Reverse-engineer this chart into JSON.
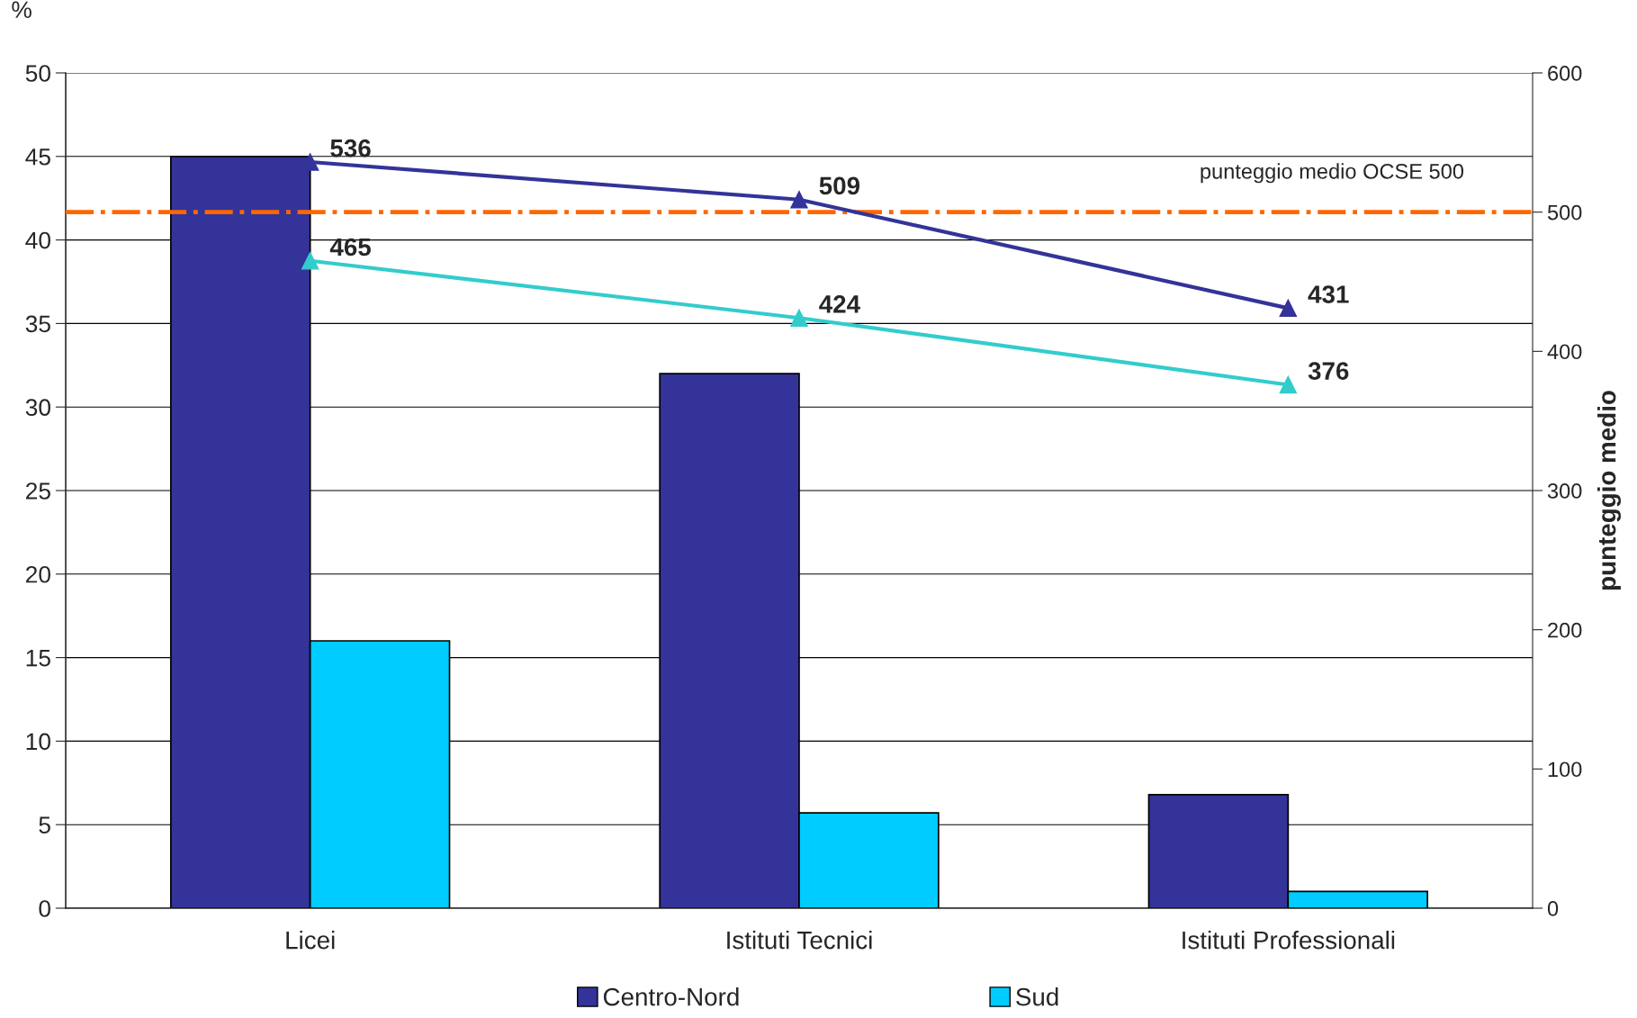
{
  "chart_data": {
    "type": "bar",
    "categories": [
      "Licei",
      "Istituti Tecnici",
      "Istituti Professionali"
    ],
    "series": [
      {
        "name": "Centro-Nord",
        "color": "#333399",
        "values": [
          45,
          32,
          6.8
        ]
      },
      {
        "name": "Sud",
        "color": "#00ccff",
        "values": [
          16,
          5.7,
          1.0
        ]
      },
      {
        "type": "line",
        "axis": "y2",
        "color": "#333399",
        "values": [
          536,
          509,
          431
        ],
        "marker": "triangle",
        "data_labels": true
      },
      {
        "type": "line",
        "axis": "y2",
        "color": "#33cccc",
        "values": [
          465,
          424,
          376
        ],
        "marker": "triangle",
        "data_labels": true
      }
    ],
    "ylabel": "%",
    "y2label": "punteggio medio",
    "ylim": [
      0,
      50
    ],
    "yticks": [
      0,
      5,
      10,
      15,
      20,
      25,
      30,
      35,
      40,
      45,
      50
    ],
    "y2lim": [
      0,
      600
    ],
    "y2ticks": [
      0,
      100,
      200,
      300,
      400,
      500,
      600
    ],
    "ref_lines": [
      {
        "axis": "y2",
        "value": 500,
        "label": "punteggio medio OCSE 500",
        "color": "#ff6600",
        "line_style": "dashdot"
      }
    ],
    "grid": "y",
    "legend": "bottom"
  }
}
